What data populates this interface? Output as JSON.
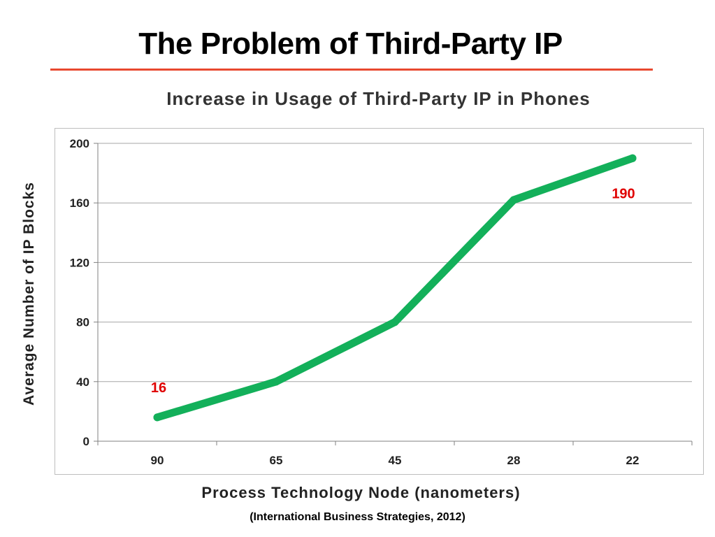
{
  "slide": {
    "title": "The Problem of Third-Party IP",
    "citation": "(International Business Strategies, 2012)"
  },
  "chart_data": {
    "type": "line",
    "title": "Increase in Usage of Third-Party IP in Phones",
    "xlabel": "Process Technology Node  (nanometers)",
    "ylabel": "Average Number of IP Blocks",
    "categories": [
      "90",
      "65",
      "45",
      "28",
      "22"
    ],
    "series": [
      {
        "values": [
          16,
          40,
          80,
          162,
          190
        ]
      }
    ],
    "ylim": [
      0,
      200
    ],
    "yticks": [
      0,
      40,
      80,
      120,
      160,
      200
    ],
    "grid": true,
    "data_labels": [
      {
        "category_index": 0,
        "text": "16"
      },
      {
        "category_index": 4,
        "text": "190"
      }
    ],
    "colors": {
      "line": "#13b05a",
      "data_label": "#e00000",
      "grid": "#a6a6a6"
    }
  }
}
